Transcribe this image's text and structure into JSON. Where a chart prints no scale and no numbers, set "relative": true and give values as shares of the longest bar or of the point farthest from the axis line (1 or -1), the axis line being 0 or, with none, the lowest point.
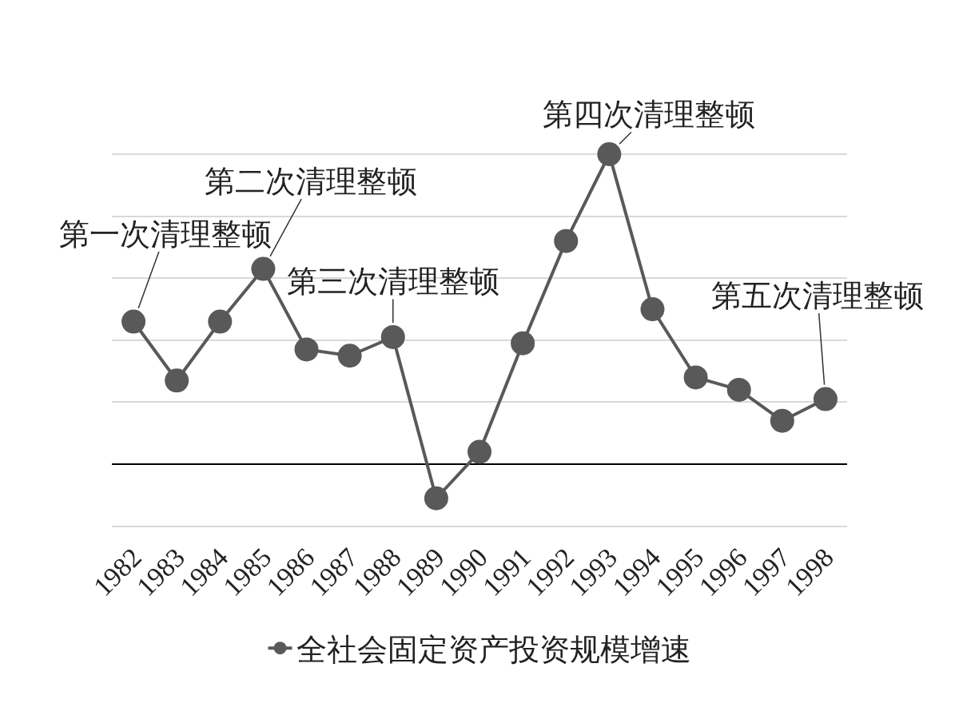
{
  "chart_data": {
    "type": "line",
    "relative": true,
    "categories": [
      "1982",
      "1983",
      "1984",
      "1985",
      "1986",
      "1987",
      "1988",
      "1989",
      "1990",
      "1991",
      "1992",
      "1993",
      "1994",
      "1995",
      "1996",
      "1997",
      "1998"
    ],
    "series": [
      {
        "name": "全社会固定资产投资规模增速",
        "color": "#595959",
        "values": [
          0.46,
          0.27,
          0.46,
          0.63,
          0.37,
          0.35,
          0.41,
          -0.11,
          0.04,
          0.39,
          0.72,
          1,
          0.5,
          0.28,
          0.24,
          0.14,
          0.21
        ]
      }
    ],
    "annotations": [
      {
        "text": "第一次清理整顿",
        "x": "1982",
        "y": 0.46
      },
      {
        "text": "第二次清理整顿",
        "x": "1985",
        "y": 0.63
      },
      {
        "text": "第三次清理整顿",
        "x": "1988",
        "y": 0.41
      },
      {
        "text": "第四次清理整顿",
        "x": "1993",
        "y": 1
      },
      {
        "text": "第五次清理整顿",
        "x": "1998",
        "y": 0.21
      }
    ],
    "grid": true,
    "legend": "bottom",
    "marker": "circle",
    "line_style": "solid"
  }
}
